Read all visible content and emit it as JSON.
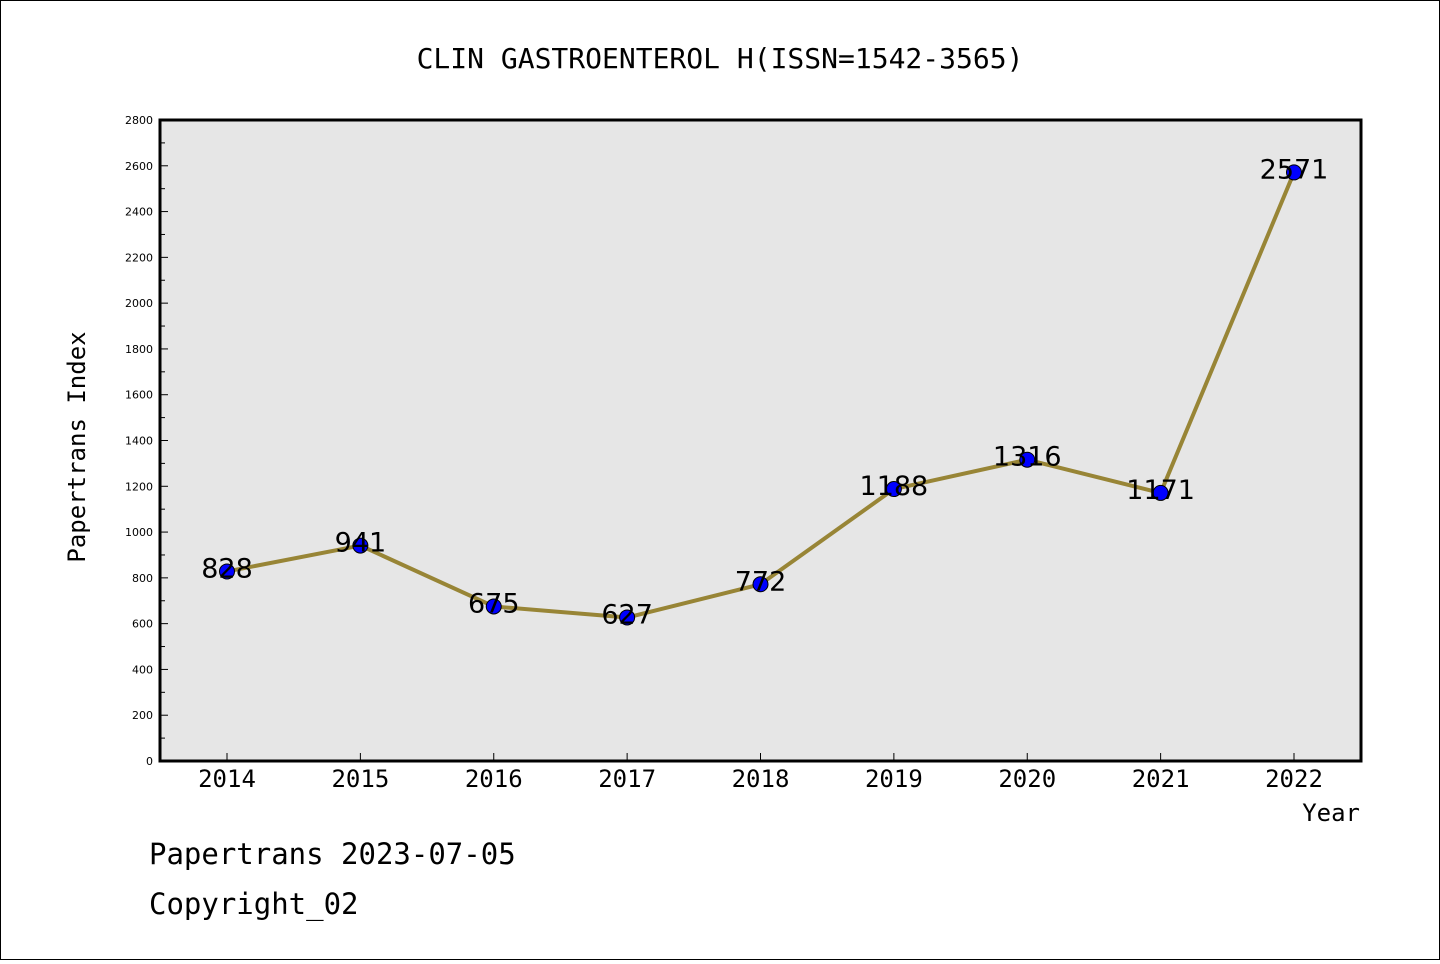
{
  "chart_data": {
    "type": "line",
    "title": "CLIN GASTROENTEROL H(ISSN=1542-3565)",
    "xlabel": "Year",
    "ylabel": "Papertrans Index",
    "categories": [
      "2014",
      "2015",
      "2016",
      "2017",
      "2018",
      "2019",
      "2020",
      "2021",
      "2022"
    ],
    "series": [
      {
        "values": [
          828,
          941,
          675,
          627,
          772,
          1188,
          1316,
          1171,
          2571
        ]
      }
    ],
    "data_labels": [
      "828",
      "941",
      "675",
      "627",
      "772",
      "1188",
      "1316",
      "1171",
      "2571"
    ],
    "ylim": [
      0,
      2800
    ],
    "yticks": [
      "0",
      "200",
      "400",
      "600",
      "800",
      "1000",
      "1200",
      "1400",
      "1600",
      "1800",
      "2000",
      "2200",
      "2400",
      "2600",
      "2800"
    ],
    "grid": false,
    "colors": {
      "plot_background": "#e6e6e6",
      "line": "#988536",
      "marker": "#0000ff"
    }
  },
  "footer": {
    "line1": "Papertrans 2023-07-05",
    "line2": "Copyright_02"
  }
}
